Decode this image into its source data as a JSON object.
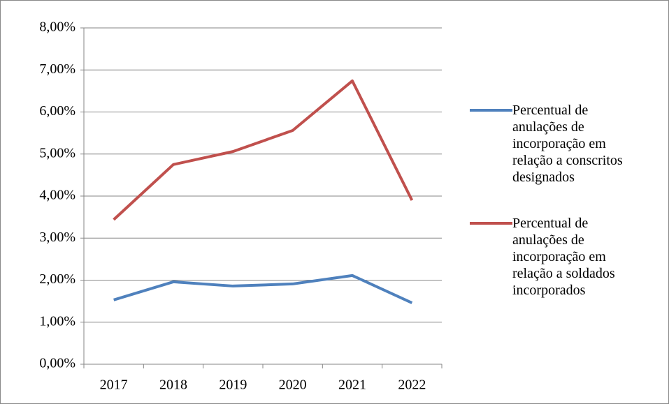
{
  "chart_data": {
    "type": "line",
    "categories": [
      "2017",
      "2018",
      "2019",
      "2020",
      "2021",
      "2022"
    ],
    "series": [
      {
        "name": "Percentual de anulações de incorporação em relação a conscritos designados",
        "color": "#4f81bd",
        "values": [
          1.53,
          1.96,
          1.86,
          1.91,
          2.11,
          1.46
        ]
      },
      {
        "name": "Percentual de anulações de incorporação em relação a soldados incorporados",
        "color": "#c0504d",
        "values": [
          3.44,
          4.75,
          5.06,
          5.56,
          6.74,
          3.9
        ]
      }
    ],
    "ylim": [
      0,
      8
    ],
    "yticks": [
      {
        "value": 0,
        "label": "0,00%"
      },
      {
        "value": 1,
        "label": "1,00%"
      },
      {
        "value": 2,
        "label": "2,00%"
      },
      {
        "value": 3,
        "label": "3,00%"
      },
      {
        "value": 4,
        "label": "4,00%"
      },
      {
        "value": 5,
        "label": "5,00%"
      },
      {
        "value": 6,
        "label": "6,00%"
      },
      {
        "value": 7,
        "label": "7,00%"
      },
      {
        "value": 8,
        "label": "8,00%"
      }
    ],
    "grid": true,
    "legend": "right"
  }
}
